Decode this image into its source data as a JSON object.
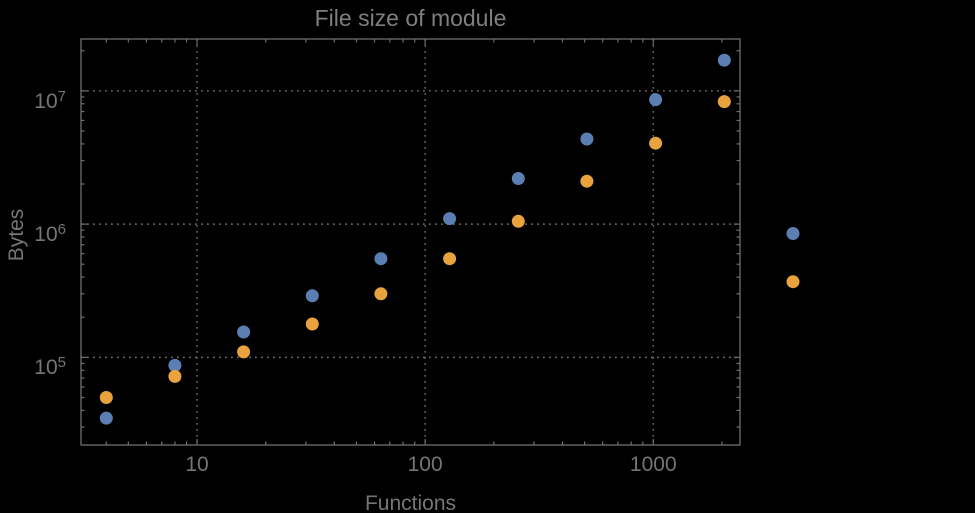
{
  "page": {
    "background": "#000000"
  },
  "chart_data": {
    "type": "scatter",
    "title": "File size of module",
    "xlabel": "Functions",
    "ylabel": "Bytes",
    "x_scale": "log",
    "y_scale": "log",
    "xlim": [
      3.1,
      2400
    ],
    "ylim": [
      22000,
      24500000
    ],
    "x_ticks": [
      10,
      100,
      1000
    ],
    "y_tick_exponents": [
      5,
      6,
      7
    ],
    "grid": {
      "x_lines_at": [
        10,
        100,
        1000
      ],
      "y_lines_at": [
        100000,
        1000000,
        10000000
      ],
      "style": "dotted"
    },
    "legend": "none",
    "plot_range_clipping": false,
    "x": [
      4,
      8,
      16,
      32,
      64,
      128,
      256,
      512,
      1024,
      2048,
      4096
    ],
    "series": [
      {
        "name": "blue",
        "color": "#5B7FB2",
        "values": [
          35000,
          87000,
          155000,
          290000,
          550000,
          1100000,
          2200000,
          4350000,
          8600000,
          17000000,
          850000
        ]
      },
      {
        "name": "orange",
        "color": "#E8A33D",
        "values": [
          50000,
          72000,
          110000,
          178000,
          300000,
          550000,
          1050000,
          2100000,
          4050000,
          8300000,
          370000
        ]
      }
    ],
    "colors": {
      "background": "#000000",
      "frame": "#6e6e6e",
      "grid": "#6e6e6e",
      "tick_text": "#757575",
      "title_text": "#7f7f7f"
    }
  }
}
